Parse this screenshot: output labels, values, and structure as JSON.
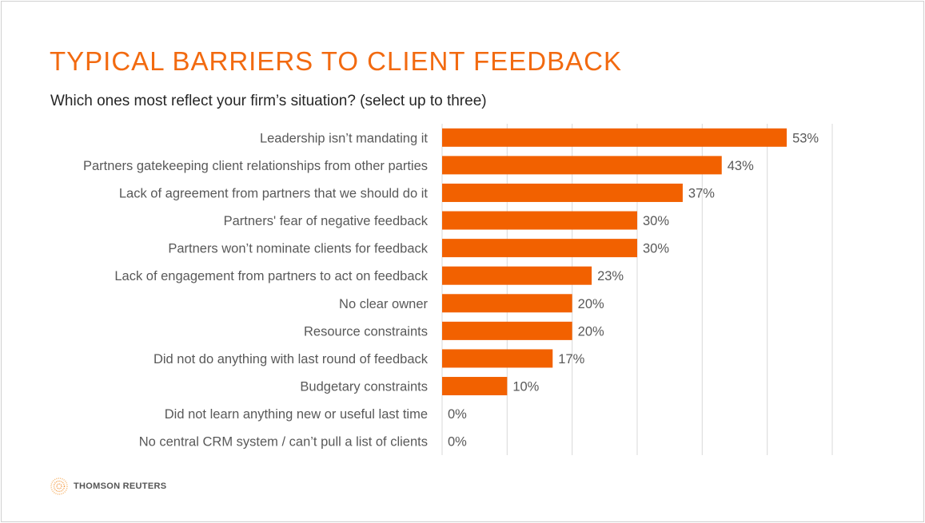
{
  "slide": {
    "title": "TYPICAL BARRIERS TO CLIENT FEEDBACK",
    "subtitle": "Which ones most reflect your firm’s situation? (select up to three)",
    "logo_text": "THOMSON REUTERS"
  },
  "colors": {
    "bar": "#f26100",
    "title": "#f26a10",
    "grid": "#d9d9d9"
  },
  "chart_data": {
    "type": "bar",
    "orientation": "horizontal",
    "title": "TYPICAL BARRIERS TO CLIENT FEEDBACK",
    "xlabel": "",
    "ylabel": "",
    "xlim": [
      0,
      60
    ],
    "grid": true,
    "categories": [
      "Leadership isn’t mandating it",
      "Partners gatekeeping client relationships from other parties",
      "Lack of agreement from partners that we should do it",
      "Partners' fear of negative feedback",
      "Partners won’t nominate clients for feedback",
      "Lack of engagement from partners to act on feedback",
      "No clear owner",
      "Resource constraints",
      "Did not do anything with last round of feedback",
      "Budgetary constraints",
      "Did not learn anything new or useful last time",
      "No central CRM system / can’t pull a list of clients"
    ],
    "values": [
      53,
      43,
      37,
      30,
      30,
      23,
      20,
      20,
      17,
      10,
      0,
      0
    ],
    "data_labels": [
      "53%",
      "43%",
      "37%",
      "30%",
      "30%",
      "23%",
      "20%",
      "20%",
      "17%",
      "10%",
      "0%",
      "0%"
    ]
  }
}
